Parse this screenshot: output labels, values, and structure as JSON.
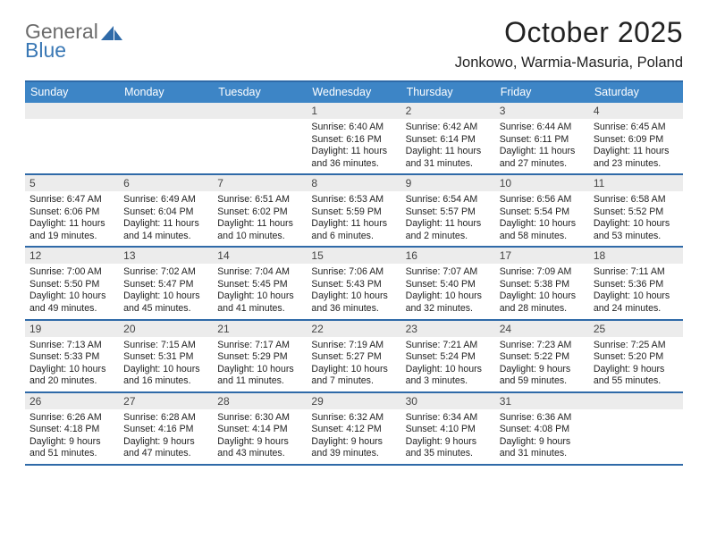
{
  "brand": {
    "part1": "General",
    "part2": "Blue",
    "color_gray": "#6b6b6b",
    "color_blue": "#3a78b5"
  },
  "title": {
    "month": "October 2025",
    "location": "Jonkowo, Warmia-Masuria, Poland"
  },
  "colors": {
    "header_bg": "#3d85c6",
    "rule": "#2f6aa8",
    "daynum_bg": "#ececec",
    "text": "#222222",
    "white": "#ffffff"
  },
  "weekdays": [
    "Sunday",
    "Monday",
    "Tuesday",
    "Wednesday",
    "Thursday",
    "Friday",
    "Saturday"
  ],
  "weeks": [
    [
      {
        "day": null
      },
      {
        "day": null
      },
      {
        "day": null
      },
      {
        "day": 1,
        "sunrise": "6:40 AM",
        "sunset": "6:16 PM",
        "daylight": "11 hours and 36 minutes."
      },
      {
        "day": 2,
        "sunrise": "6:42 AM",
        "sunset": "6:14 PM",
        "daylight": "11 hours and 31 minutes."
      },
      {
        "day": 3,
        "sunrise": "6:44 AM",
        "sunset": "6:11 PM",
        "daylight": "11 hours and 27 minutes."
      },
      {
        "day": 4,
        "sunrise": "6:45 AM",
        "sunset": "6:09 PM",
        "daylight": "11 hours and 23 minutes."
      }
    ],
    [
      {
        "day": 5,
        "sunrise": "6:47 AM",
        "sunset": "6:06 PM",
        "daylight": "11 hours and 19 minutes."
      },
      {
        "day": 6,
        "sunrise": "6:49 AM",
        "sunset": "6:04 PM",
        "daylight": "11 hours and 14 minutes."
      },
      {
        "day": 7,
        "sunrise": "6:51 AM",
        "sunset": "6:02 PM",
        "daylight": "11 hours and 10 minutes."
      },
      {
        "day": 8,
        "sunrise": "6:53 AM",
        "sunset": "5:59 PM",
        "daylight": "11 hours and 6 minutes."
      },
      {
        "day": 9,
        "sunrise": "6:54 AM",
        "sunset": "5:57 PM",
        "daylight": "11 hours and 2 minutes."
      },
      {
        "day": 10,
        "sunrise": "6:56 AM",
        "sunset": "5:54 PM",
        "daylight": "10 hours and 58 minutes."
      },
      {
        "day": 11,
        "sunrise": "6:58 AM",
        "sunset": "5:52 PM",
        "daylight": "10 hours and 53 minutes."
      }
    ],
    [
      {
        "day": 12,
        "sunrise": "7:00 AM",
        "sunset": "5:50 PM",
        "daylight": "10 hours and 49 minutes."
      },
      {
        "day": 13,
        "sunrise": "7:02 AM",
        "sunset": "5:47 PM",
        "daylight": "10 hours and 45 minutes."
      },
      {
        "day": 14,
        "sunrise": "7:04 AM",
        "sunset": "5:45 PM",
        "daylight": "10 hours and 41 minutes."
      },
      {
        "day": 15,
        "sunrise": "7:06 AM",
        "sunset": "5:43 PM",
        "daylight": "10 hours and 36 minutes."
      },
      {
        "day": 16,
        "sunrise": "7:07 AM",
        "sunset": "5:40 PM",
        "daylight": "10 hours and 32 minutes."
      },
      {
        "day": 17,
        "sunrise": "7:09 AM",
        "sunset": "5:38 PM",
        "daylight": "10 hours and 28 minutes."
      },
      {
        "day": 18,
        "sunrise": "7:11 AM",
        "sunset": "5:36 PM",
        "daylight": "10 hours and 24 minutes."
      }
    ],
    [
      {
        "day": 19,
        "sunrise": "7:13 AM",
        "sunset": "5:33 PM",
        "daylight": "10 hours and 20 minutes."
      },
      {
        "day": 20,
        "sunrise": "7:15 AM",
        "sunset": "5:31 PM",
        "daylight": "10 hours and 16 minutes."
      },
      {
        "day": 21,
        "sunrise": "7:17 AM",
        "sunset": "5:29 PM",
        "daylight": "10 hours and 11 minutes."
      },
      {
        "day": 22,
        "sunrise": "7:19 AM",
        "sunset": "5:27 PM",
        "daylight": "10 hours and 7 minutes."
      },
      {
        "day": 23,
        "sunrise": "7:21 AM",
        "sunset": "5:24 PM",
        "daylight": "10 hours and 3 minutes."
      },
      {
        "day": 24,
        "sunrise": "7:23 AM",
        "sunset": "5:22 PM",
        "daylight": "9 hours and 59 minutes."
      },
      {
        "day": 25,
        "sunrise": "7:25 AM",
        "sunset": "5:20 PM",
        "daylight": "9 hours and 55 minutes."
      }
    ],
    [
      {
        "day": 26,
        "sunrise": "6:26 AM",
        "sunset": "4:18 PM",
        "daylight": "9 hours and 51 minutes."
      },
      {
        "day": 27,
        "sunrise": "6:28 AM",
        "sunset": "4:16 PM",
        "daylight": "9 hours and 47 minutes."
      },
      {
        "day": 28,
        "sunrise": "6:30 AM",
        "sunset": "4:14 PM",
        "daylight": "9 hours and 43 minutes."
      },
      {
        "day": 29,
        "sunrise": "6:32 AM",
        "sunset": "4:12 PM",
        "daylight": "9 hours and 39 minutes."
      },
      {
        "day": 30,
        "sunrise": "6:34 AM",
        "sunset": "4:10 PM",
        "daylight": "9 hours and 35 minutes."
      },
      {
        "day": 31,
        "sunrise": "6:36 AM",
        "sunset": "4:08 PM",
        "daylight": "9 hours and 31 minutes."
      },
      {
        "day": null
      }
    ]
  ],
  "labels": {
    "sunrise": "Sunrise:",
    "sunset": "Sunset:",
    "daylight": "Daylight:"
  }
}
